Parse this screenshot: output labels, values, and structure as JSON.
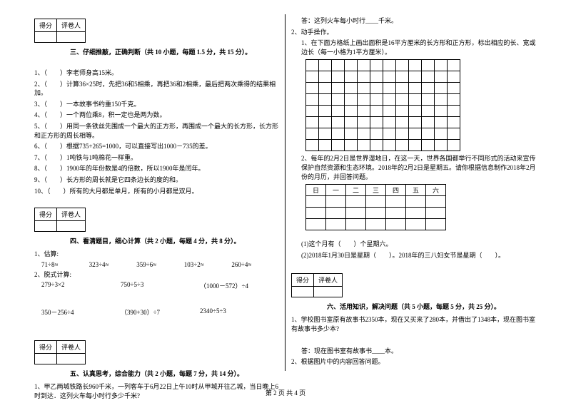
{
  "score_header": {
    "col1": "得分",
    "col2": "评卷人"
  },
  "sec3": {
    "title": "三、仔细推敲，正确判断（共 10 小题，每题 1.5 分，共 15 分）。",
    "items": [
      "1、（　　）李老师身高15米。",
      "2、（　　）计算36×25时，先把36和5相乘，再把36和2相乘，最后把两次乘得的结果相加。",
      "3、（　　）一本故事书约重150千克。",
      "4、（　　）一个两位乘8，积一定也是两为数。",
      "5、（　　）用同一条铁丝先围成一个最大的正方形，再围成一个最大的长方形，长方形和正方形的周长相等。",
      "6、（　　）根据735+265=1000，可以直接写出1000－735的差。",
      "7、（　　）1吨铁与1吨棉花一样重。",
      "8、（　　）1900年的年份数是4的倍数，所以1900年是闰年。",
      "9、（　　）长方形的周长就是它四条边长的度的和。",
      "10、（　　）所有的大月都是单月，所有的小月都是双月。"
    ]
  },
  "sec4": {
    "title": "四、看清题目，细心计算（共 2 小题，每题 4 分，共 8 分）。",
    "sub1": "1、估算:",
    "row1": [
      "71÷8≈",
      "323÷4≈",
      "359÷6≈",
      "103÷2≈",
      "260÷4≈"
    ],
    "sub2": "2、脱式计算:",
    "row2a": [
      "279÷3×2",
      "750÷5÷3",
      "（1000－572）÷4"
    ],
    "row2b": [
      "350－256÷4",
      "（390+30）÷7",
      "2340÷5÷3"
    ]
  },
  "sec5": {
    "title": "五、认真思考，综合能力（共 2 小题，每题 7 分，共 14 分）。",
    "q1": "1、甲乙两城铁路长960千米，一列客车于6月22日上午10时从甲城开往乙城，当日晚上6时到达．这列火车每小时行多少千米?"
  },
  "right": {
    "ans": "答：这列火车每小时行____千米。",
    "q2": "2、动手操作。",
    "q2_1": "1、在下面方格纸上画出面积是16平方厘米的长方形和正方形，标出相应的长、宽或边长（每一小格为1平方厘米）。",
    "q2_2": "2、每年的2月2日是世界湿地日，在这一天，世界各国都举行不同形式的活动来宣传保护自然资源和生态环境。2018年的2月2日是星期五。请你根据信息制作2018年2月份的月历，并回答问题。",
    "cal_header": [
      "日",
      "一",
      "二",
      "三",
      "四",
      "五",
      "六"
    ],
    "q2_a": "(1)这个月有（　　）个星期六。",
    "q2_b": "(2)2018年1月30日是星期（　　）。2018年的三八妇女节是星期（　　）。"
  },
  "sec6": {
    "title": "六、活用知识，解决问题（共 5 小题，每题 5 分，共 25 分）。",
    "q1": "1、学校图书室原有故事书2350本，现在又买来了280本，并借出了1348本，现在图书室有故事书多少本?",
    "ans1": "答：现在图书室有故事书____本。",
    "q2": "2、根据图片中的内容回答问题。"
  },
  "footer": "第 2 页 共 4 页",
  "grid": {
    "rows": 8,
    "cols": 12
  },
  "cal_rows": 3
}
